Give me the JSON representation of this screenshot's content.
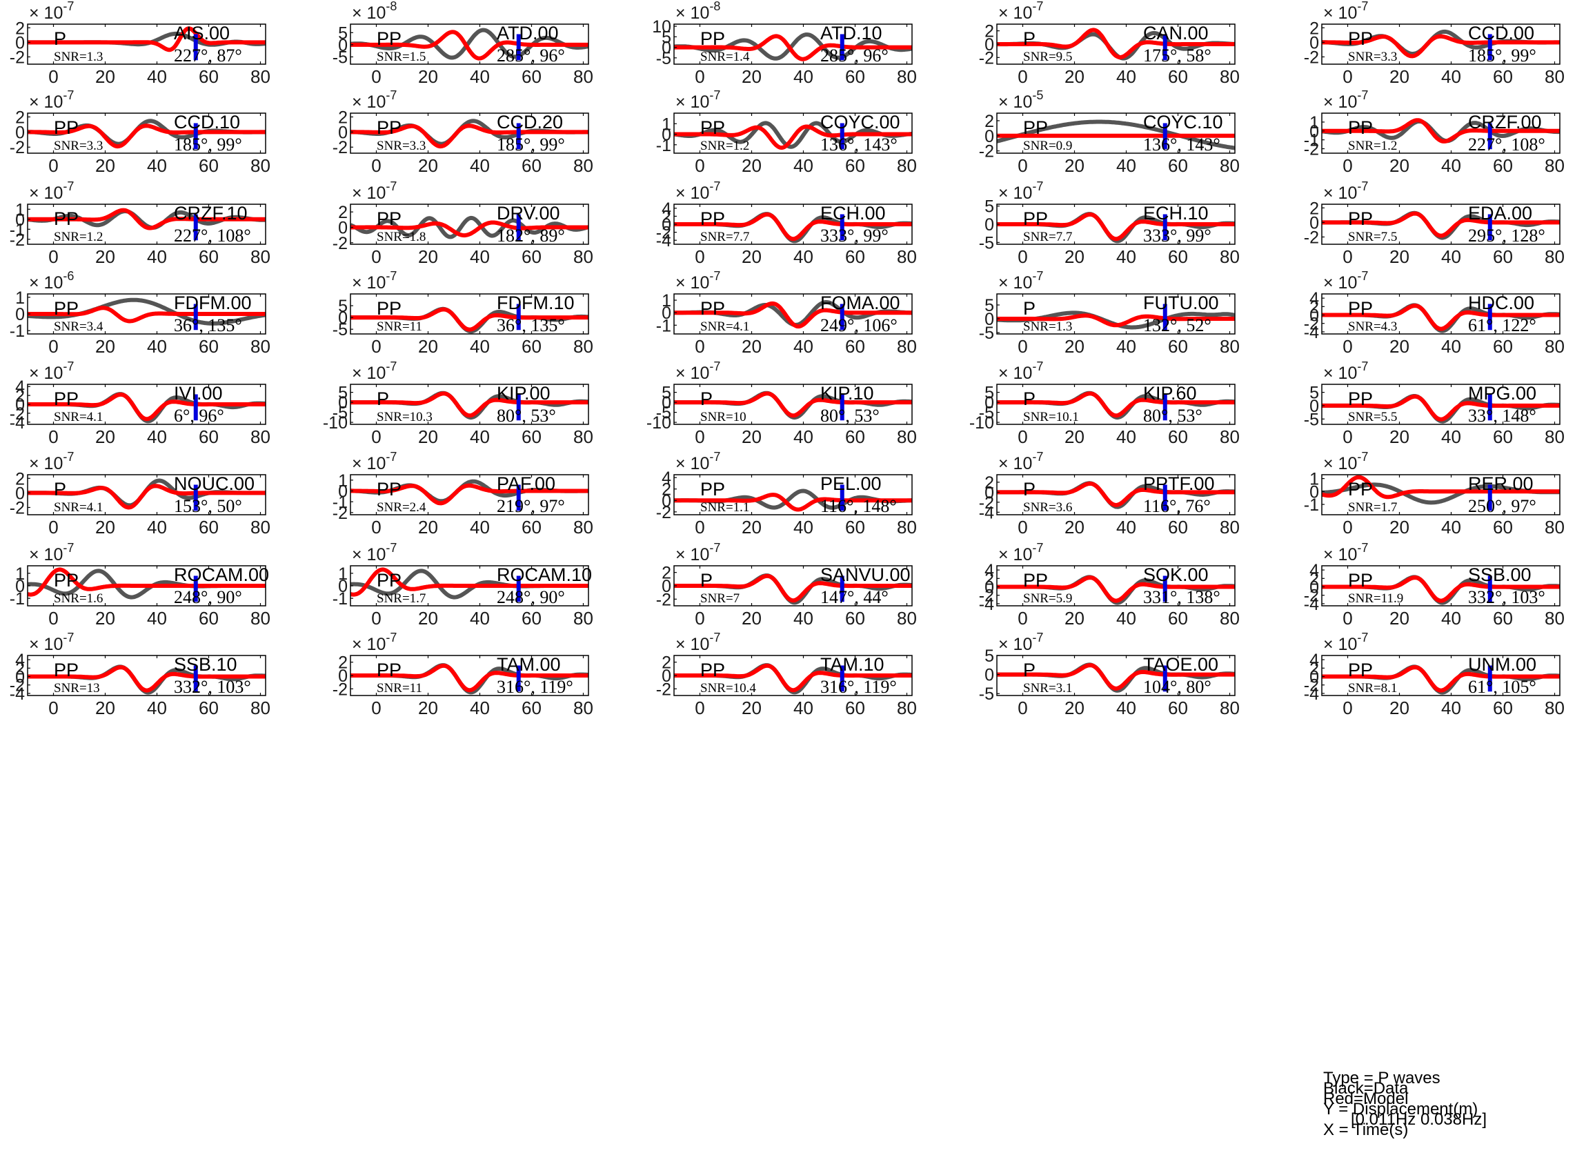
{
  "chart_data": {
    "type": "line",
    "x_ticks": [
      0,
      20,
      40,
      60,
      80
    ],
    "x_range": [
      -10,
      82
    ],
    "series": [
      {
        "name": "Data",
        "color": "#555555"
      },
      {
        "name": "Model",
        "color": "#ff0000"
      }
    ],
    "marker_color": "#0000dd",
    "marker_x": 55,
    "panels": [
      {
        "station": "AIS.00",
        "phase": "P",
        "snr": "SNR=1.3",
        "angles": "227°, 87°",
        "exponent": "-7",
        "ylim": [
          -3,
          2.5
        ],
        "yticks": [
          "2",
          "0",
          "-2"
        ],
        "ytick_values": [
          2,
          0,
          -2
        ],
        "type": "A"
      },
      {
        "station": "ATD.00",
        "phase": "PP",
        "snr": "SNR=1.5",
        "angles": "285°, 96°",
        "exponent": "-8",
        "ylim": [
          -8,
          8.5
        ],
        "yticks": [
          "5",
          "0",
          "-5"
        ],
        "ytick_values": [
          5,
          0,
          -5
        ],
        "type": "B"
      },
      {
        "station": "ATD.10",
        "phase": "PP",
        "snr": "SNR=1.4",
        "angles": "285°, 96°",
        "exponent": "-8",
        "ylim": [
          -8,
          11
        ],
        "yticks": [
          "10",
          "5",
          "0",
          "-5"
        ],
        "ytick_values": [
          10,
          5,
          0,
          -5
        ],
        "type": "B"
      },
      {
        "station": "CAN.00",
        "phase": "P",
        "snr": "SNR=9.5",
        "angles": "175°, 58°",
        "exponent": "-7",
        "ylim": [
          -3,
          3
        ],
        "yticks": [
          "2",
          "0",
          "-2"
        ],
        "ytick_values": [
          2,
          0,
          -2
        ],
        "type": "C"
      },
      {
        "station": "CCD.00",
        "phase": "PP",
        "snr": "SNR=3.3",
        "angles": "185°, 99°",
        "exponent": "-7",
        "ylim": [
          -3,
          2.5
        ],
        "yticks": [
          "2",
          "0",
          "-2"
        ],
        "ytick_values": [
          2,
          0,
          -2
        ],
        "type": "D"
      },
      {
        "station": "CCD.10",
        "phase": "PP",
        "snr": "SNR=3.3",
        "angles": "185°, 99°",
        "exponent": "-7",
        "ylim": [
          -2.8,
          2.5
        ],
        "yticks": [
          "2",
          "0",
          "-2"
        ],
        "ytick_values": [
          2,
          0,
          -2
        ],
        "type": "D"
      },
      {
        "station": "CCD.20",
        "phase": "PP",
        "snr": "SNR=3.3",
        "angles": "185°, 99°",
        "exponent": "-7",
        "ylim": [
          -2.8,
          2.5
        ],
        "yticks": [
          "2",
          "0",
          "-2"
        ],
        "ytick_values": [
          2,
          0,
          -2
        ],
        "type": "D"
      },
      {
        "station": "COYC.00",
        "phase": "PP",
        "snr": "SNR=1.2",
        "angles": "136°, 143°",
        "exponent": "-7",
        "ylim": [
          -1.8,
          2
        ],
        "yticks": [
          "1",
          "0",
          "-1"
        ],
        "ytick_values": [
          1,
          0,
          -1
        ],
        "type": "E"
      },
      {
        "station": "COYC.10",
        "phase": "PP",
        "snr": "SNR=0.9",
        "angles": "136°, 143°",
        "exponent": "-5",
        "ylim": [
          -2.3,
          3
        ],
        "yticks": [
          "2",
          "0",
          "-2"
        ],
        "ytick_values": [
          2,
          0,
          -2
        ],
        "type": "F"
      },
      {
        "station": "CRZF.00",
        "phase": "PP",
        "snr": "SNR=1.2",
        "angles": "227°, 108°",
        "exponent": "-7",
        "ylim": [
          -2.5,
          2
        ],
        "yticks": [
          "1",
          "0",
          "-1",
          "-2"
        ],
        "ytick_values": [
          1,
          0,
          -1,
          -2
        ],
        "type": "G"
      },
      {
        "station": "CRZF.10",
        "phase": "PP",
        "snr": "SNR=1.2",
        "angles": "227°, 108°",
        "exponent": "-7",
        "ylim": [
          -2.5,
          1.5
        ],
        "yticks": [
          "1",
          "0",
          "-1",
          "-2"
        ],
        "ytick_values": [
          1,
          0,
          -1,
          -2
        ],
        "type": "G"
      },
      {
        "station": "DRV.00",
        "phase": "PP",
        "snr": "SNR=1.8",
        "angles": "182°, 89°",
        "exponent": "-7",
        "ylim": [
          -2.2,
          3
        ],
        "yticks": [
          "2",
          "0",
          "-2"
        ],
        "ytick_values": [
          2,
          0,
          -2
        ],
        "type": "H"
      },
      {
        "station": "ECH.00",
        "phase": "PP",
        "snr": "SNR=7.7",
        "angles": "333°, 99°",
        "exponent": "-7",
        "ylim": [
          -5,
          5
        ],
        "yticks": [
          "4",
          "2",
          "0",
          "-2",
          "-4"
        ],
        "ytick_values": [
          4,
          2,
          0,
          -2,
          -4
        ],
        "type": "I"
      },
      {
        "station": "ECH.10",
        "phase": "PP",
        "snr": "SNR=7.7",
        "angles": "333°, 99°",
        "exponent": "-7",
        "ylim": [
          -5.5,
          5.5
        ],
        "yticks": [
          "5",
          "0",
          "-5"
        ],
        "ytick_values": [
          5,
          0,
          -5
        ],
        "type": "I"
      },
      {
        "station": "EDA.00",
        "phase": "PP",
        "snr": "SNR=7.5",
        "angles": "295°, 128°",
        "exponent": "-7",
        "ylim": [
          -3,
          2.5
        ],
        "yticks": [
          "2",
          "0",
          "-2"
        ],
        "ytick_values": [
          2,
          0,
          -2
        ],
        "type": "I"
      },
      {
        "station": "FDFM.00",
        "phase": "PP",
        "snr": "SNR=3.4",
        "angles": "36°, 135°",
        "exponent": "-6",
        "ylim": [
          -1.2,
          1.2
        ],
        "yticks": [
          "1",
          "0",
          "-1"
        ],
        "ytick_values": [
          1,
          0,
          -1
        ],
        "type": "J"
      },
      {
        "station": "FDFM.10",
        "phase": "PP",
        "snr": "SNR=11",
        "angles": "36°, 135°",
        "exponent": "-7",
        "ylim": [
          -7,
          10
        ],
        "yticks": [
          "5",
          "0",
          "-5"
        ],
        "ytick_values": [
          5,
          0,
          -5
        ],
        "type": "I"
      },
      {
        "station": "FOMA.00",
        "phase": "PP",
        "snr": "SNR=4.1",
        "angles": "249°, 106°",
        "exponent": "-7",
        "ylim": [
          -1.7,
          1.5
        ],
        "yticks": [
          "1",
          "0",
          "-1"
        ],
        "ytick_values": [
          1,
          0,
          -1
        ],
        "type": "K"
      },
      {
        "station": "FUTU.00",
        "phase": "P",
        "snr": "SNR=1.3",
        "angles": "132°, 52°",
        "exponent": "-7",
        "ylim": [
          -5.5,
          9
        ],
        "yticks": [
          "5",
          "0",
          "-5"
        ],
        "ytick_values": [
          5,
          0,
          -5
        ],
        "type": "L"
      },
      {
        "station": "HDC.00",
        "phase": "PP",
        "snr": "SNR=4.3",
        "angles": "61°, 122°",
        "exponent": "-7",
        "ylim": [
          -4.5,
          5
        ],
        "yticks": [
          "4",
          "2",
          "0",
          "-2",
          "-4"
        ],
        "ytick_values": [
          4,
          2,
          0,
          -2,
          -4
        ],
        "type": "I"
      },
      {
        "station": "IVI.00",
        "phase": "PP",
        "snr": "SNR=4.1",
        "angles": "6°, 96°",
        "exponent": "-7",
        "ylim": [
          -4.5,
          4.5
        ],
        "yticks": [
          "4",
          "2",
          "0",
          "-2",
          "-4"
        ],
        "ytick_values": [
          4,
          2,
          0,
          -2,
          -4
        ],
        "type": "I"
      },
      {
        "station": "KIP.00",
        "phase": "P",
        "snr": "SNR=10.3",
        "angles": "80°, 53°",
        "exponent": "-7",
        "ylim": [
          -11,
          9
        ],
        "yticks": [
          "5",
          "0",
          "-5",
          "-10"
        ],
        "ytick_values": [
          5,
          0,
          -5,
          -10
        ],
        "type": "I"
      },
      {
        "station": "KIP.10",
        "phase": "P",
        "snr": "SNR=10",
        "angles": "80°, 53°",
        "exponent": "-7",
        "ylim": [
          -11,
          9
        ],
        "yticks": [
          "5",
          "0",
          "-5",
          "-10"
        ],
        "ytick_values": [
          5,
          0,
          -5,
          -10
        ],
        "type": "I"
      },
      {
        "station": "KIP.60",
        "phase": "P",
        "snr": "SNR=10.1",
        "angles": "80°, 53°",
        "exponent": "-7",
        "ylim": [
          -11,
          9
        ],
        "yticks": [
          "5",
          "0",
          "-5",
          "-10"
        ],
        "ytick_values": [
          5,
          0,
          -5,
          -10
        ],
        "type": "I"
      },
      {
        "station": "MPG.00",
        "phase": "PP",
        "snr": "SNR=5.5",
        "angles": "33°, 148°",
        "exponent": "-7",
        "ylim": [
          -7,
          8
        ],
        "yticks": [
          "5",
          "0",
          "-5"
        ],
        "ytick_values": [
          5,
          0,
          -5
        ],
        "type": "I"
      },
      {
        "station": "NOUC.00",
        "phase": "P",
        "snr": "SNR=4.1",
        "angles": "153°, 50°",
        "exponent": "-7",
        "ylim": [
          -3,
          2.5
        ],
        "yticks": [
          "2",
          "0",
          "-2"
        ],
        "ytick_values": [
          2,
          0,
          -2
        ],
        "type": "M"
      },
      {
        "station": "PAF.00",
        "phase": "PP",
        "snr": "SNR=2.4",
        "angles": "219°, 97°",
        "exponent": "-7",
        "ylim": [
          -2.2,
          1.5
        ],
        "yticks": [
          "1",
          "0",
          "-1",
          "-2"
        ],
        "ytick_values": [
          1,
          0,
          -1,
          -2
        ],
        "type": "D"
      },
      {
        "station": "PEL.00",
        "phase": "PP",
        "snr": "SNR=1.1",
        "angles": "116°, 148°",
        "exponent": "-7",
        "ylim": [
          -2.5,
          4.5
        ],
        "yticks": [
          "4",
          "2",
          "0",
          "-2"
        ],
        "ytick_values": [
          4,
          2,
          0,
          -2
        ],
        "type": "N"
      },
      {
        "station": "PPTF.00",
        "phase": "P",
        "snr": "SNR=3.6",
        "angles": "116°, 76°",
        "exponent": "-7",
        "ylim": [
          -4.5,
          3.5
        ],
        "yticks": [
          "2",
          "0",
          "-2",
          "-4"
        ],
        "ytick_values": [
          2,
          0,
          -2,
          -4
        ],
        "type": "I"
      },
      {
        "station": "RER.00",
        "phase": "PP",
        "snr": "SNR=1.7",
        "angles": "250°, 97°",
        "exponent": "-7",
        "ylim": [
          -1.8,
          1.3
        ],
        "yticks": [
          "1",
          "0",
          "-1"
        ],
        "ytick_values": [
          1,
          0,
          -1
        ],
        "type": "O"
      },
      {
        "station": "ROCAM.00",
        "phase": "PP",
        "snr": "SNR=1.6",
        "angles": "248°, 90°",
        "exponent": "-7",
        "ylim": [
          -1.6,
          1.6
        ],
        "yticks": [
          "1",
          "0",
          "-1"
        ],
        "ytick_values": [
          1,
          0,
          -1
        ],
        "type": "P"
      },
      {
        "station": "ROCAM.10",
        "phase": "PP",
        "snr": "SNR=1.7",
        "angles": "248°, 90°",
        "exponent": "-7",
        "ylim": [
          -1.6,
          1.6
        ],
        "yticks": [
          "1",
          "0",
          "-1"
        ],
        "ytick_values": [
          1,
          0,
          -1
        ],
        "type": "P"
      },
      {
        "station": "SANVU.00",
        "phase": "P",
        "snr": "SNR=7",
        "angles": "147°, 44°",
        "exponent": "-7",
        "ylim": [
          -3,
          3
        ],
        "yticks": [
          "2",
          "0",
          "-2"
        ],
        "ytick_values": [
          2,
          0,
          -2
        ],
        "type": "I"
      },
      {
        "station": "SOK.00",
        "phase": "PP",
        "snr": "SNR=5.9",
        "angles": "331°, 138°",
        "exponent": "-7",
        "ylim": [
          -4.5,
          5
        ],
        "yticks": [
          "4",
          "2",
          "0",
          "-2",
          "-4"
        ],
        "ytick_values": [
          4,
          2,
          0,
          -2,
          -4
        ],
        "type": "I"
      },
      {
        "station": "SSB.00",
        "phase": "PP",
        "snr": "SNR=11.9",
        "angles": "332°, 103°",
        "exponent": "-7",
        "ylim": [
          -4.5,
          5
        ],
        "yticks": [
          "4",
          "2",
          "0",
          "-2",
          "-4"
        ],
        "ytick_values": [
          4,
          2,
          0,
          -2,
          -4
        ],
        "type": "I"
      },
      {
        "station": "SSB.10",
        "phase": "PP",
        "snr": "SNR=13",
        "angles": "332°, 103°",
        "exponent": "-7",
        "ylim": [
          -4.5,
          5
        ],
        "yticks": [
          "4",
          "2",
          "0",
          "-2",
          "-4"
        ],
        "ytick_values": [
          4,
          2,
          0,
          -2,
          -4
        ],
        "type": "I"
      },
      {
        "station": "TAM.00",
        "phase": "PP",
        "snr": "SNR=11",
        "angles": "316°, 119°",
        "exponent": "-7",
        "ylim": [
          -3,
          3
        ],
        "yticks": [
          "2",
          "0",
          "-2"
        ],
        "ytick_values": [
          2,
          0,
          -2
        ],
        "type": "I"
      },
      {
        "station": "TAM.10",
        "phase": "PP",
        "snr": "SNR=10.4",
        "angles": "316°, 119°",
        "exponent": "-7",
        "ylim": [
          -3,
          3
        ],
        "yticks": [
          "2",
          "0",
          "-2"
        ],
        "ytick_values": [
          2,
          0,
          -2
        ],
        "type": "I"
      },
      {
        "station": "TAOE.00",
        "phase": "P",
        "snr": "SNR=3.1",
        "angles": "104°, 80°",
        "exponent": "-7",
        "ylim": [
          -5.5,
          5
        ],
        "yticks": [
          "5",
          "0",
          "-5"
        ],
        "ytick_values": [
          5,
          0,
          -5
        ],
        "type": "I"
      },
      {
        "station": "UNM.00",
        "phase": "PP",
        "snr": "SNR=8.1",
        "angles": "61°, 105°",
        "exponent": "-7",
        "ylim": [
          -4.5,
          5
        ],
        "yticks": [
          "4",
          "2",
          "0",
          "-2",
          "-4"
        ],
        "ytick_values": [
          4,
          2,
          0,
          -2,
          -4
        ],
        "type": "I"
      }
    ]
  },
  "legend": {
    "line1": "Type = P waves",
    "line2": "Black=Data",
    "line3": "Red=Model",
    "line4": "Y = Displacement(m)",
    "line5": "[0.011Hz 0.038Hz]",
    "line6": "X = Time(s)"
  }
}
